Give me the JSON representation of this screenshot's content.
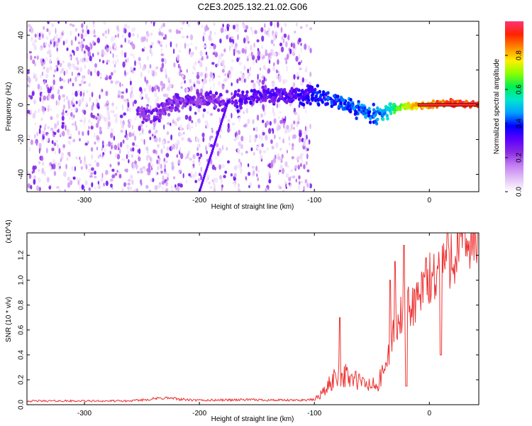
{
  "figure": {
    "title": "C2E3.2025.132.21.02.G06"
  },
  "colors": {
    "snr_line": "#ee3333",
    "frame": "#000000",
    "background": "#ffffff",
    "colormap": [
      "#ffffff",
      "#e2c2f6",
      "#c47ef3",
      "#8a2be2",
      "#5a00ff",
      "#0000ff",
      "#00a0ff",
      "#00e5d0",
      "#00ee55",
      "#88ff00",
      "#ffee00",
      "#ff8800",
      "#ff2200",
      "#ff3377"
    ]
  },
  "chart_data": [
    {
      "type": "heatmap",
      "title": "C2E3.2025.132.21.02.G06",
      "xlabel": "Height of straight line (km)",
      "ylabel": "Frequency (Hz)",
      "xlim": [
        -350,
        43
      ],
      "ylim": [
        -50,
        48
      ],
      "x_ticks": [
        -300,
        -200,
        -100,
        0
      ],
      "y_ticks": [
        -40,
        -20,
        0,
        20,
        40
      ],
      "colorbar": {
        "label": "Normalized spectral amplitude",
        "range": [
          0,
          1
        ],
        "ticks": [
          0.0,
          0.2,
          0.4,
          0.6,
          0.8
        ]
      },
      "features": {
        "scatter_x_range": [
          -350,
          -103
        ],
        "ridge": [
          {
            "x": -255,
            "y": -4,
            "amp": 0.28
          },
          {
            "x": -240,
            "y": -6,
            "amp": 0.3
          },
          {
            "x": -225,
            "y": 1,
            "amp": 0.3
          },
          {
            "x": -195,
            "y": 3,
            "amp": 0.3
          },
          {
            "x": -180,
            "y": 2,
            "amp": 0.32
          },
          {
            "x": -160,
            "y": 3,
            "amp": 0.35
          },
          {
            "x": -140,
            "y": 5,
            "amp": 0.35
          },
          {
            "x": -120,
            "y": 5,
            "amp": 0.35
          },
          {
            "x": -100,
            "y": 6,
            "amp": 0.42
          },
          {
            "x": -80,
            "y": 2,
            "amp": 0.46
          },
          {
            "x": -60,
            "y": -3,
            "amp": 0.48
          },
          {
            "x": -45,
            "y": -6,
            "amp": 0.5
          },
          {
            "x": -35,
            "y": -3,
            "amp": 0.6
          },
          {
            "x": -20,
            "y": -1,
            "amp": 0.8
          },
          {
            "x": 0,
            "y": 0,
            "amp": 0.9
          },
          {
            "x": 15,
            "y": 1,
            "amp": 0.95
          },
          {
            "x": 43,
            "y": 0,
            "amp": 1.0
          }
        ],
        "diagonal_streak": [
          {
            "x": -200,
            "y": -50
          },
          {
            "x": -175,
            "y": 2
          }
        ]
      }
    },
    {
      "type": "line",
      "xlabel": "Height of straight line (km)",
      "ylabel": "SNR (10 * v/v)",
      "y_scale_label": "(x10^4)",
      "xlim": [
        -350,
        43
      ],
      "ylim": [
        0,
        1.38
      ],
      "x_ticks": [
        -300,
        -200,
        -100,
        0
      ],
      "y_ticks": [
        0.0,
        0.2,
        0.4,
        0.6,
        0.8,
        1.0,
        1.2
      ],
      "series": [
        {
          "baseline_points": [
            {
              "x": -350,
              "y": 0.03
            },
            {
              "x": -260,
              "y": 0.03
            },
            {
              "x": -230,
              "y": 0.055
            },
            {
              "x": -205,
              "y": 0.035
            },
            {
              "x": -160,
              "y": 0.04
            },
            {
              "x": -120,
              "y": 0.035
            },
            {
              "x": -100,
              "y": 0.04
            },
            {
              "x": -90,
              "y": 0.12
            },
            {
              "x": -80,
              "y": 0.25
            },
            {
              "x": -70,
              "y": 0.22
            },
            {
              "x": -55,
              "y": 0.16
            },
            {
              "x": -45,
              "y": 0.15
            },
            {
              "x": -38,
              "y": 0.3
            },
            {
              "x": -32,
              "y": 0.55
            },
            {
              "x": -25,
              "y": 0.7
            },
            {
              "x": -15,
              "y": 0.8
            },
            {
              "x": -5,
              "y": 0.9
            },
            {
              "x": 5,
              "y": 1.05
            },
            {
              "x": 15,
              "y": 1.2
            },
            {
              "x": 30,
              "y": 1.3
            },
            {
              "x": 43,
              "y": 1.33
            }
          ],
          "peaks": [
            {
              "x": -78,
              "y": 0.7
            },
            {
              "x": -34,
              "y": 1.0
            },
            {
              "x": -30,
              "y": 1.15
            },
            {
              "x": -22,
              "y": 1.28
            },
            {
              "x": -3,
              "y": 1.18
            },
            {
              "x": 10,
              "y": 1.25
            }
          ],
          "dips": [
            {
              "x": 10,
              "y": 0.4
            },
            {
              "x": -20,
              "y": 0.15
            }
          ]
        }
      ]
    }
  ]
}
